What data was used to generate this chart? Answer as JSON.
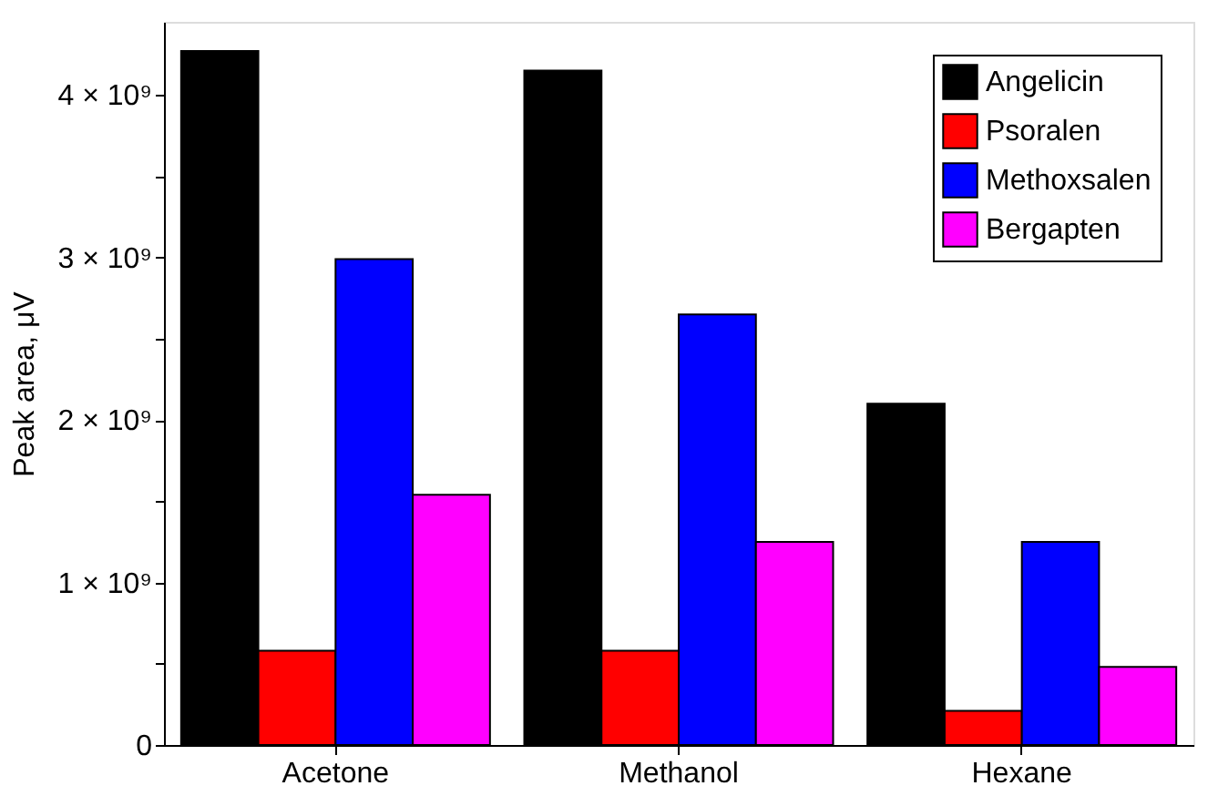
{
  "chart_data": {
    "type": "bar",
    "ylabel": "Peak area, μV",
    "categories": [
      "Acetone",
      "Methanol",
      "Hexane"
    ],
    "series": [
      {
        "name": "Angelicin",
        "color": "#000000",
        "values": [
          4270000000,
          4150000000,
          2100000000
        ]
      },
      {
        "name": "Psoralen",
        "color": "#ff0000",
        "values": [
          580000000,
          580000000,
          210000000
        ]
      },
      {
        "name": "Methoxsalen",
        "color": "#0000ff",
        "values": [
          2990000000,
          2650000000,
          1250000000
        ]
      },
      {
        "name": "Bergapten",
        "color": "#ff00ff",
        "values": [
          1540000000,
          1250000000,
          480000000
        ]
      }
    ],
    "ylim": [
      0,
      4450000000
    ],
    "yticks": [
      0,
      {
        "value": 500000000,
        "label": null
      },
      {
        "value": 1000000000,
        "label": "1 × 10⁹"
      },
      {
        "value": 1500000000,
        "label": null
      },
      {
        "value": 2000000000,
        "label": "2 × 10⁹"
      },
      {
        "value": 2500000000,
        "label": null
      },
      {
        "value": 3000000000,
        "label": "3 × 10⁹"
      },
      {
        "value": 3500000000,
        "label": null
      },
      {
        "value": 4000000000,
        "label": "4 × 10⁹"
      }
    ],
    "grid": false,
    "legend": "top right"
  }
}
